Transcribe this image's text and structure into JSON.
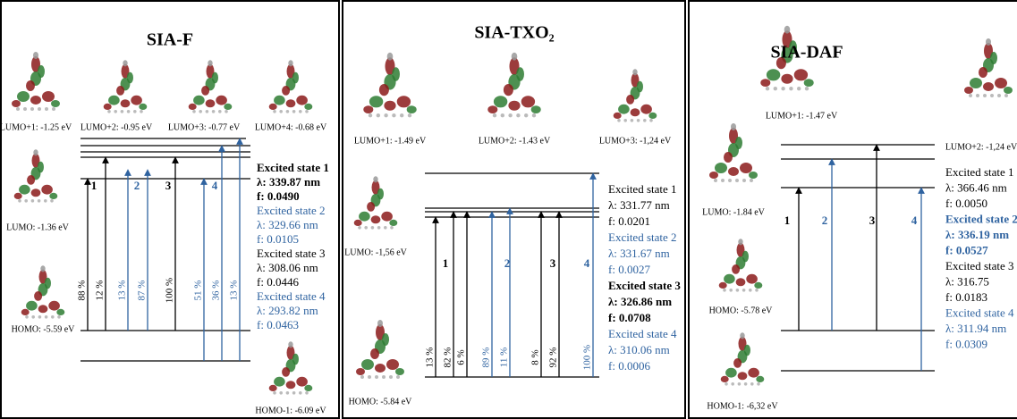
{
  "panels": [
    {
      "title": "SIA-F",
      "orbitals": [
        "LUMO+1: -1.25 eV",
        "LUMO+2: -0.95 eV",
        "LUMO+3: -0.77 eV",
        "LUMO+4: -0.68 eV",
        "LUMO: -1.36 eV",
        "HOMO: -5.59 eV",
        "HOMO-1: -6.09 eV"
      ],
      "transitions": [
        "1",
        "2",
        "3",
        "4"
      ],
      "percentages": [
        "88 %",
        "12 %",
        "13 %",
        "87 %",
        "100 %",
        "51 %",
        "36 %",
        "13 %"
      ],
      "states": [
        [
          "Excited state 1",
          "λ: 339.87 nm",
          "f: 0.0490"
        ],
        [
          "Excited state 2",
          "λ: 329.66 nm",
          "f: 0.0105"
        ],
        [
          "Excited state 3",
          "λ: 308.06 nm",
          "f: 0.0446"
        ],
        [
          "Excited state 4",
          "λ: 293.82 nm",
          "f: 0.0463"
        ]
      ]
    },
    {
      "title": "SIA-TXO₂",
      "orbitals": [
        "LUMO+1: -1.49 eV",
        "LUMO+2: -1.43 eV",
        "LUMO+3: -1,24 eV",
        "LUMO: -1,56 eV",
        "HOMO: -5.84 eV"
      ],
      "transitions": [
        "1",
        "2",
        "3",
        "4"
      ],
      "percentages": [
        "13 %",
        "82 %",
        "6 %",
        "89 %",
        "11 %",
        "8 %",
        "92 %",
        "100 %"
      ],
      "states": [
        [
          "Excited state 1",
          "λ: 331.77 nm",
          "f: 0.0201"
        ],
        [
          "Excited state 2",
          "λ: 331.67 nm",
          "f: 0.0027"
        ],
        [
          "Excited state 3",
          "λ: 326.86 nm",
          "f: 0.0708"
        ],
        [
          "Excited state 4",
          "λ: 310.06 nm",
          "f: 0.0006"
        ]
      ]
    },
    {
      "title": "SIA-DAF",
      "orbitals": [
        "LUMO+1: -1.47 eV",
        "LUMO+2: -1,24 eV",
        "LUMO: -1.84 eV",
        "HOMO: -5.78 eV",
        "HOMO-1: -6,32 eV"
      ],
      "transitions": [
        "1",
        "2",
        "3",
        "4"
      ],
      "percentages": [],
      "states": [
        [
          "Excited state 1",
          "λ: 366.46 nm",
          "f: 0.0050"
        ],
        [
          "Excited state 2",
          "λ: 336.19 nm",
          "f: 0.0527"
        ],
        [
          "Excited state 3",
          "λ: 316.75",
          "f: 0.0183"
        ],
        [
          "Excited state 4",
          "λ: 311.94 nm",
          "f: 0.0309"
        ]
      ]
    }
  ]
}
